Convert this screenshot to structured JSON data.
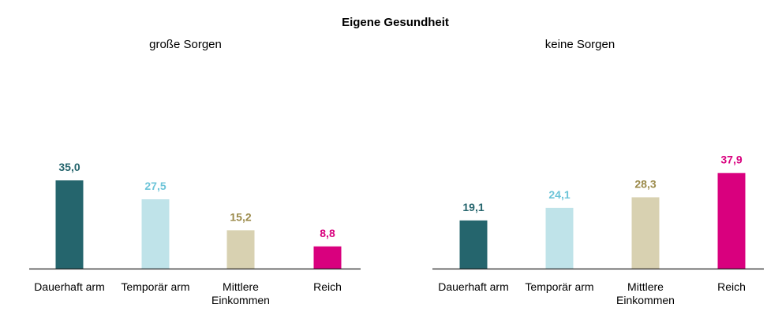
{
  "chart_data": {
    "type": "bar",
    "title": "Eigene Gesundheit",
    "categories": [
      [
        "Dauerhaft arm"
      ],
      [
        "Temporär arm"
      ],
      [
        "Mittlere",
        "Einkommen"
      ],
      [
        "Reich"
      ]
    ],
    "colors": [
      "#25656d",
      "#bfe3e9",
      "#d8d1b1",
      "#d9007e"
    ],
    "label_colors": [
      "#25656d",
      "#6cc4d8",
      "#9b8a4a",
      "#d9007e"
    ],
    "grid": false,
    "ylim": [
      0,
      40
    ],
    "panels": [
      {
        "subtitle": "große Sorgen",
        "values": [
          35.0,
          27.5,
          15.2,
          8.8
        ],
        "labels": [
          "35,0",
          "27,5",
          "15,2",
          "8,8"
        ]
      },
      {
        "subtitle": "keine Sorgen",
        "values": [
          19.1,
          24.1,
          28.3,
          37.9
        ],
        "labels": [
          "19,1",
          "24,1",
          "28,3",
          "37,9"
        ]
      }
    ]
  }
}
